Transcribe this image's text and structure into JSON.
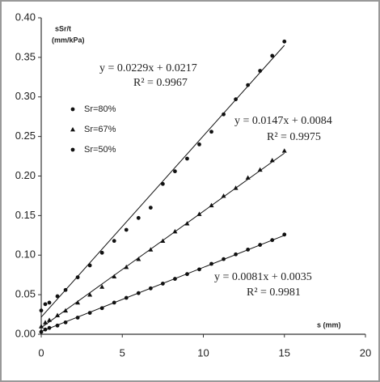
{
  "chart_data": {
    "type": "scatter",
    "y_label": "sSr/t",
    "y_unit": "(mm/kPa)",
    "x_label": "s (mm)",
    "xlim": [
      0,
      20
    ],
    "xticks": [
      0,
      5,
      10,
      15,
      20
    ],
    "ylim": [
      0,
      0.4
    ],
    "yticks": [
      {
        "value": 0,
        "label": "0.00"
      },
      0.05,
      {
        "value": 0.1,
        "label": "0.10"
      },
      0.15,
      {
        "value": 0.2,
        "label": "0.20"
      },
      0.25,
      {
        "value": 0.3,
        "label": "0.30"
      },
      0.35,
      {
        "value": 0.4,
        "label": "0.40"
      }
    ],
    "x": [
      0,
      0.25,
      0.5,
      1,
      1.5,
      2.25,
      3,
      3.75,
      4.5,
      5.25,
      6,
      6.75,
      7.5,
      8.25,
      9,
      9.75,
      10.5,
      11.25,
      12,
      12.75,
      13.5,
      14.25,
      15
    ],
    "series": [
      {
        "name": "Sr=80%",
        "color": "#111111",
        "marker": "circle",
        "values": [
          0.03,
          0.038,
          0.04,
          0.048,
          0.056,
          0.072,
          0.087,
          0.103,
          0.118,
          0.132,
          0.147,
          0.16,
          0.19,
          0.206,
          0.222,
          0.24,
          0.256,
          0.278,
          0.297,
          0.315,
          0.333,
          0.352,
          0.37
        ],
        "trendline": {
          "slope": 0.0229,
          "intercept": 0.0217,
          "equation": "y = 0.0229x + 0.0217",
          "r2": "R² = 0.9967"
        }
      },
      {
        "name": "Sr=67%",
        "color": "#111111",
        "marker": "triangle",
        "values": [
          0.01,
          0.015,
          0.018,
          0.024,
          0.03,
          0.04,
          0.05,
          0.06,
          0.073,
          0.085,
          0.095,
          0.107,
          0.118,
          0.13,
          0.14,
          0.152,
          0.163,
          0.175,
          0.185,
          0.198,
          0.208,
          0.22,
          0.232
        ],
        "trendline": {
          "slope": 0.0147,
          "intercept": 0.0084,
          "equation": "y = 0.0147x + 0.0084",
          "r2": "R² = 0.9975"
        }
      },
      {
        "name": "Sr=50%",
        "color": "#111111",
        "marker": "circle",
        "values": [
          0.003,
          0.006,
          0.008,
          0.011,
          0.015,
          0.021,
          0.027,
          0.033,
          0.04,
          0.046,
          0.052,
          0.058,
          0.064,
          0.07,
          0.076,
          0.082,
          0.089,
          0.095,
          0.101,
          0.107,
          0.113,
          0.119,
          0.126
        ],
        "trendline": {
          "slope": 0.0081,
          "intercept": 0.0035,
          "equation": "y = 0.0081x + 0.0035",
          "r2": "R² = 0.9981"
        }
      }
    ]
  }
}
